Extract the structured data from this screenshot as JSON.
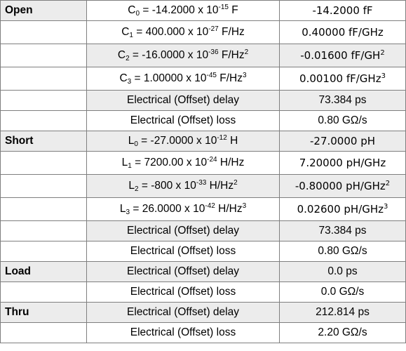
{
  "rows": [
    {
      "group": "Open",
      "sym": "C",
      "idx": "0",
      "eq": " = -14.2000 x 10",
      "exp": "-15",
      "unit": " F",
      "unitExp": "",
      "value": "-14.2000 fF",
      "valueExp": ""
    },
    {
      "group": "",
      "sym": "C",
      "idx": "1",
      "eq": " = 400.000 x 10",
      "exp": "-27",
      "unit": " F/Hz",
      "unitExp": "",
      "value": "0.40000 fF/GHz",
      "valueExp": ""
    },
    {
      "group": "",
      "sym": "C",
      "idx": "2",
      "eq": " = -16.0000 x 10",
      "exp": "-36",
      "unit": " F/Hz",
      "unitExp": "2",
      "value": "-0.01600 fF/GH",
      "valueExp": "2"
    },
    {
      "group": "",
      "sym": "C",
      "idx": "3",
      "eq": " = 1.00000 x 10",
      "exp": "-45",
      "unit": " F/Hz",
      "unitExp": "3",
      "value": "0.00100 fF/GHz",
      "valueExp": "3"
    },
    {
      "group": "",
      "param": "Electrical (Offset) delay",
      "value": "73.384 ps"
    },
    {
      "group": "",
      "param": "Electrical (Offset) loss",
      "value": "0.80 GΩ/s"
    },
    {
      "group": "Short",
      "sym": "L",
      "idx": "0",
      "eq": " = -27.0000 x 10",
      "exp": "-12",
      "unit": " H",
      "unitExp": "",
      "value": "-27.0000 pH",
      "valueExp": ""
    },
    {
      "group": "",
      "sym": "L",
      "idx": "1",
      "eq": " = 7200.00 x 10",
      "exp": "-24",
      "unit": " H/Hz",
      "unitExp": "",
      "value": "7.20000 pH/GHz",
      "valueExp": ""
    },
    {
      "group": "",
      "sym": "L",
      "idx": "2",
      "eq": " = -800 x 10",
      "exp": "-33",
      "unit": " H/Hz",
      "unitExp": "2",
      "value": "-0.80000 pH/GHz",
      "valueExp": "2"
    },
    {
      "group": "",
      "sym": "L",
      "idx": "3",
      "eq": " = 26.0000 x 10",
      "exp": "-42",
      "unit": " H/Hz",
      "unitExp": "3",
      "value": "0.02600 pH/GHz",
      "valueExp": "3"
    },
    {
      "group": "",
      "param": "Electrical (Offset) delay",
      "value": "73.384 ps"
    },
    {
      "group": "",
      "param": "Electrical (Offset) loss",
      "value": "0.80 GΩ/s"
    },
    {
      "group": "Load",
      "param": "Electrical (Offset) delay",
      "value": "0.0 ps"
    },
    {
      "group": "",
      "param": "Electrical (Offset) loss",
      "value": "0.0 GΩ/s"
    },
    {
      "group": "Thru",
      "param": "Electrical (Offset) delay",
      "value": "212.814 ps"
    },
    {
      "group": "",
      "param": "Electrical (Offset) loss",
      "value": "2.20 GΩ/s"
    }
  ]
}
